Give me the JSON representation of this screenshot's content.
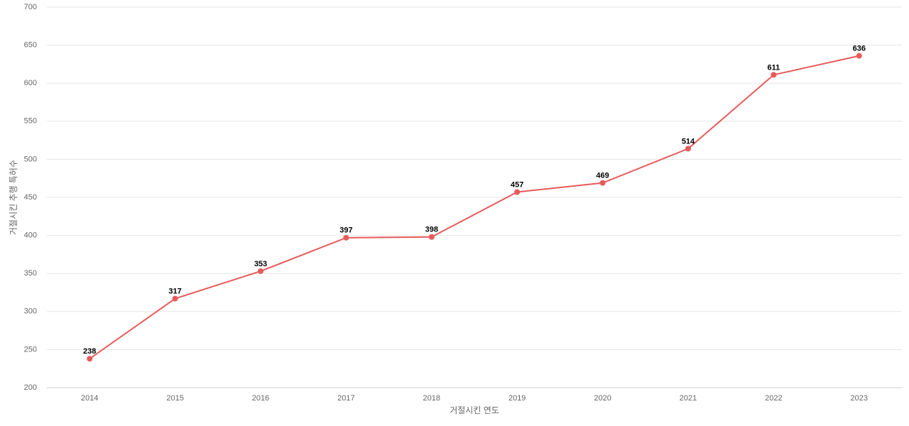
{
  "chart_data": {
    "type": "line",
    "x_label": "거절시킨 연도",
    "y_label": "거절시킨 추행 특허수",
    "categories": [
      "2014",
      "2015",
      "2016",
      "2017",
      "2018",
      "2019",
      "2020",
      "2021",
      "2022",
      "2023"
    ],
    "series": [
      {
        "name": "특허수",
        "color": "#e85a5a",
        "values": [
          238,
          317,
          353,
          397,
          398,
          457,
          469,
          514,
          611,
          636
        ]
      }
    ],
    "ylim": [
      200,
      700
    ],
    "yticks": [
      200,
      250,
      300,
      350,
      400,
      450,
      500,
      550,
      600,
      650,
      700
    ],
    "grid": true
  }
}
